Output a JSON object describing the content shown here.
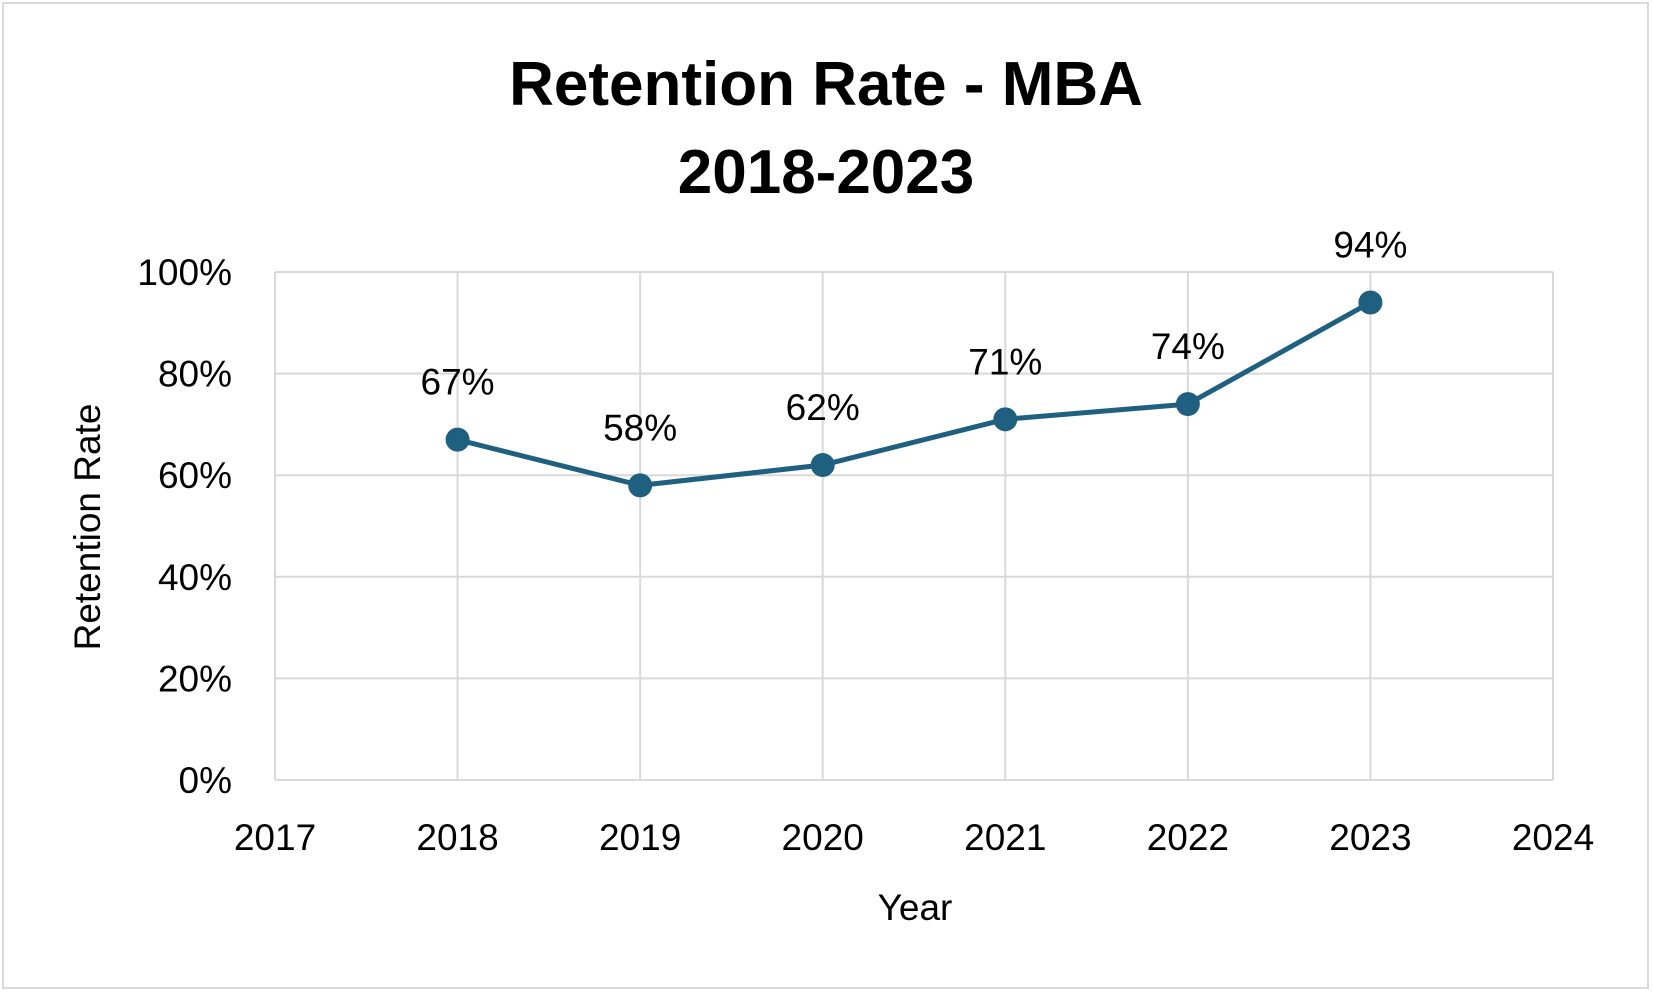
{
  "chart_data": {
    "type": "line",
    "title": [
      "Retention Rate - MBA",
      "2018-2023"
    ],
    "xlabel": "Year",
    "ylabel": "Retention Rate",
    "xlim": [
      2017,
      2024
    ],
    "ylim": [
      0,
      100
    ],
    "x_ticks": [
      "2017",
      "2018",
      "2019",
      "2020",
      "2021",
      "2022",
      "2023",
      "2024"
    ],
    "y_ticks": [
      "0%",
      "20%",
      "40%",
      "60%",
      "80%",
      "100%"
    ],
    "grid": true,
    "legend": "none",
    "series_color": "#1f5f80",
    "series": [
      {
        "x": [
          2018,
          2019,
          2020,
          2021,
          2022,
          2023
        ],
        "values": [
          67,
          58,
          62,
          71,
          74,
          94
        ],
        "labels": [
          "67%",
          "58%",
          "62%",
          "71%",
          "74%",
          "94%"
        ]
      }
    ]
  }
}
